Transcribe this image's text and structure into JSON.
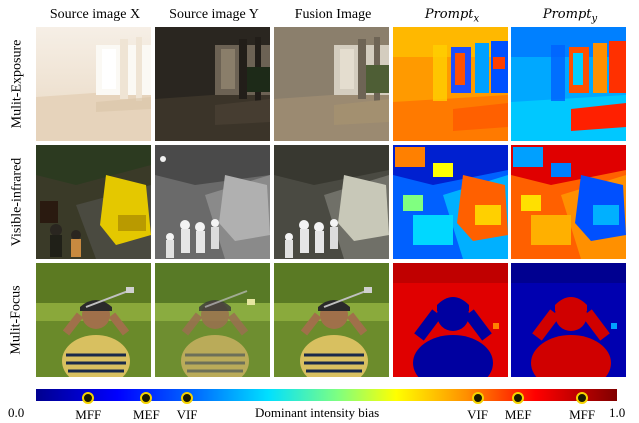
{
  "columns": {
    "source_x": "Source image X",
    "source_y": "Source image Y",
    "fusion": "Fusion Image",
    "prompt_x_base": "Prompt",
    "prompt_x_sub": "x",
    "prompt_y_base": "Prompt",
    "prompt_y_sub": "y"
  },
  "rows": {
    "exposure": "Mulit-Exposure",
    "infrared": "Visible-infrared",
    "focus": "Mulit-Focus"
  },
  "colorbar": {
    "min_label": "0.0",
    "max_label": "1.0",
    "center_label": "Dominant intensity bias",
    "markers": [
      {
        "label": "MFF",
        "value": 0.09
      },
      {
        "label": "MEF",
        "value": 0.19
      },
      {
        "label": "VIF",
        "value": 0.26
      },
      {
        "label": "VIF",
        "value": 0.76
      },
      {
        "label": "MEF",
        "value": 0.83
      },
      {
        "label": "MFF",
        "value": 0.94
      }
    ]
  },
  "colors": {
    "cmap_low": "#00008f",
    "cmap_high": "#800000",
    "marker_fill": "#1a1a00",
    "marker_ring": "#f5d300"
  }
}
